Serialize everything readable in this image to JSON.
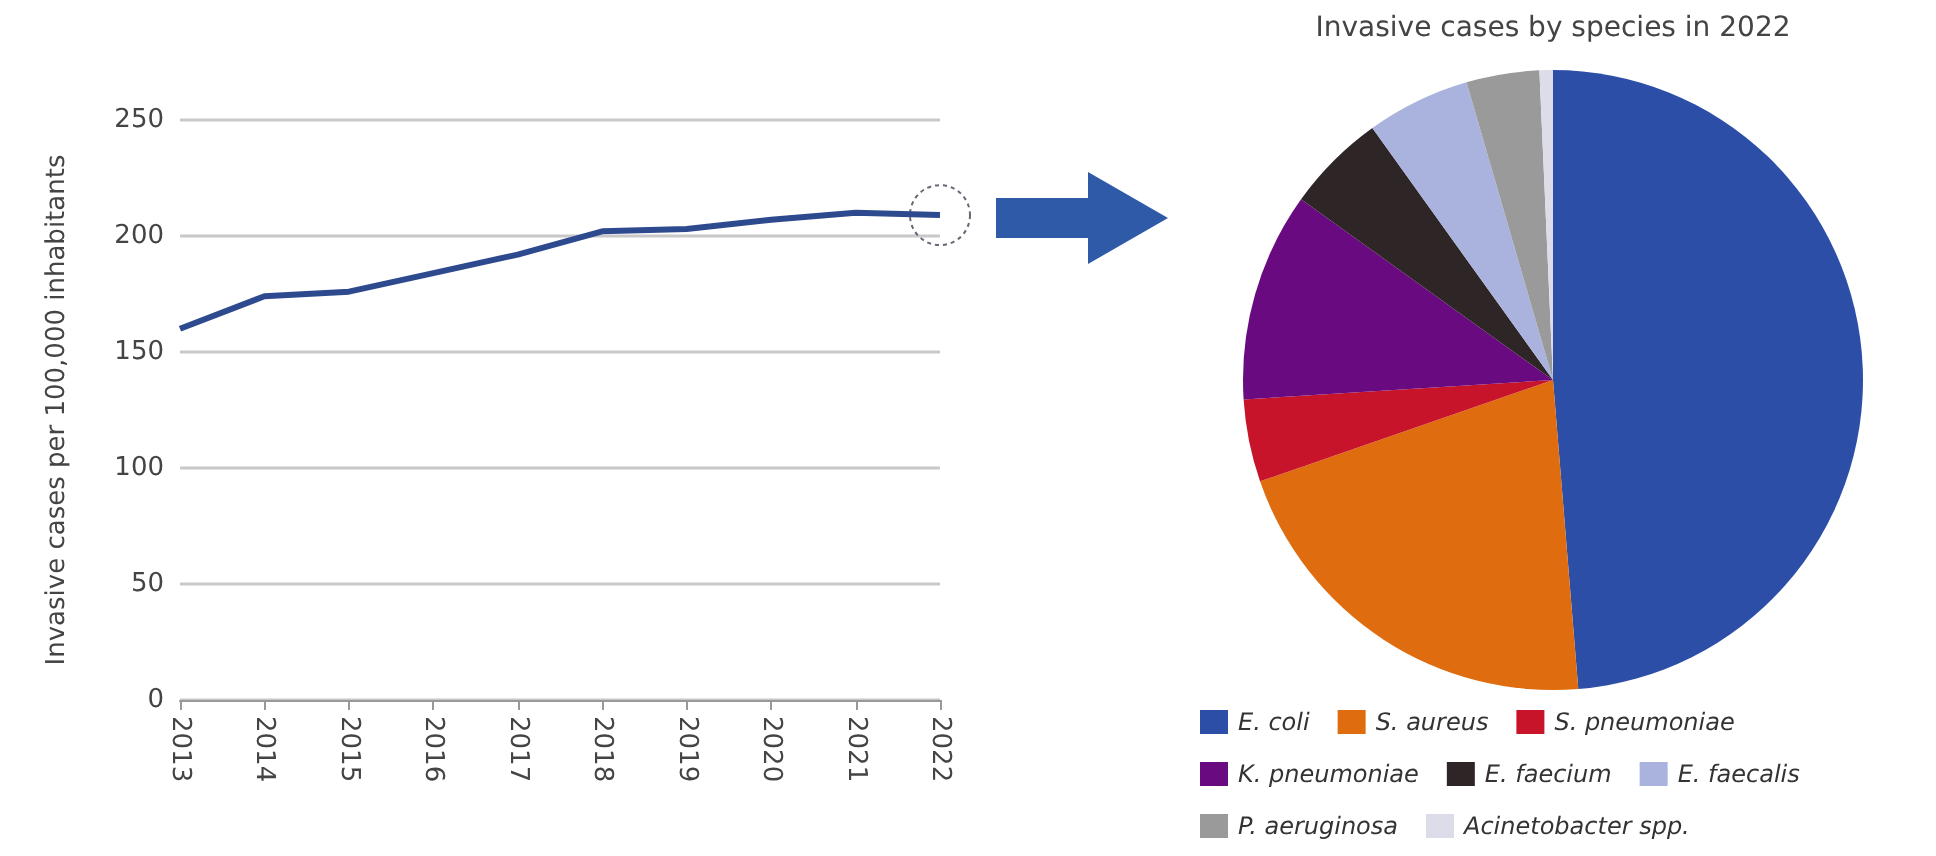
{
  "chart_data": [
    {
      "type": "line",
      "categories": [
        "2013",
        "2014",
        "2015",
        "2016",
        "2017",
        "2018",
        "2019",
        "2020",
        "2021",
        "2022"
      ],
      "ylabel": "Invasive cases per 100,000 inhabitants",
      "ylim": [
        0,
        250
      ],
      "yticks": [
        0,
        50,
        100,
        150,
        200,
        250
      ],
      "grid": "y",
      "marker": "none",
      "line_style": "solid",
      "series": [
        {
          "color": "#2e4a8f",
          "values": [
            160,
            174,
            176,
            184,
            192,
            202,
            203,
            207,
            210,
            209
          ]
        }
      ]
    },
    {
      "type": "pie",
      "title": "Invasive cases by species in 2022",
      "legend": "bottom",
      "categories": [
        "E. coli",
        "S. aureus",
        "S. pneumoniae",
        "K. pneumoniae",
        "E. faecium",
        "E. faecalis",
        "P. aeruginosa",
        "Acinetobacter spp."
      ],
      "values": [
        48.7,
        21,
        4.3,
        10.9,
        5.2,
        5.4,
        3.8,
        0.7
      ],
      "colors": [
        "#2c4ea6",
        "#e06c10",
        "#c8142a",
        "#6a0a80",
        "#2e2526",
        "#aab3dd",
        "#9a9a9a",
        "#dcdde8"
      ]
    }
  ]
}
